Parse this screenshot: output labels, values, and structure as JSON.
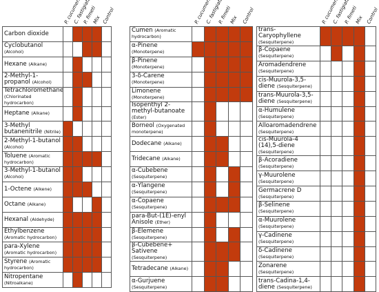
{
  "columns": [
    "P. cucumerina",
    "C. fastigiata",
    "P. fimeti",
    "Mix",
    "Control"
  ],
  "fill_color": "#c23b0d",
  "panels": [
    {
      "rows": [
        {
          "name": "Carbon dioxide",
          "cells": [
            0,
            1,
            1,
            1,
            0
          ]
        },
        {
          "name": "Cyclobutanol",
          "class": "(Alcohol)",
          "cells": [
            0,
            0,
            1,
            1,
            0
          ]
        },
        {
          "name": "Hexane",
          "class": "(Alkane)",
          "cells": [
            0,
            1,
            0,
            0,
            0
          ]
        },
        {
          "name": "2-Methyl-1-propanol",
          "class": "(Alcohol)",
          "cells": [
            0,
            1,
            1,
            0,
            0
          ]
        },
        {
          "name": "Tetrachloromethane",
          "class": "(Chlorinated hydrocarbon)",
          "cells": [
            0,
            1,
            0,
            0,
            0
          ]
        },
        {
          "name": "Heptane",
          "class": "(Alkane)",
          "cells": [
            0,
            1,
            0,
            0,
            0
          ]
        },
        {
          "name": "3-Methyl butanenitrile",
          "class": "(Nitrile)",
          "cells": [
            1,
            0,
            0,
            0,
            0
          ]
        },
        {
          "name": "2-Methyl-1-butanol",
          "class": "(Alcohol)",
          "cells": [
            1,
            1,
            0,
            0,
            0
          ]
        },
        {
          "name": "Toluene",
          "class": "(Aromatic hydrocarbon)",
          "cells": [
            1,
            1,
            1,
            1,
            0
          ]
        },
        {
          "name": "3-Methyl-1-butanol",
          "class": "(Alcohol)",
          "cells": [
            1,
            1,
            0,
            0,
            0
          ]
        },
        {
          "name": "1-Octene",
          "class": "(Alkene)",
          "cells": [
            1,
            1,
            1,
            0,
            0
          ]
        },
        {
          "name": "Octane",
          "class": "(Alkane)",
          "cells": [
            1,
            0,
            0,
            1,
            0
          ]
        },
        {
          "name": "Hexanal",
          "class": "(Aldehyde)",
          "cells": [
            1,
            1,
            1,
            1,
            0
          ]
        },
        {
          "name": "Ethylbenzene",
          "class": "(Aromatic hydrocarbon)",
          "cells": [
            1,
            1,
            1,
            1,
            0
          ]
        },
        {
          "name": "para-Xylene",
          "class": "(Aromatic hydrocarbon)",
          "cells": [
            1,
            1,
            1,
            1,
            0
          ]
        },
        {
          "name": "Styrene",
          "class": "(Aromatic hydrocarbon)",
          "cells": [
            1,
            1,
            1,
            1,
            0
          ]
        },
        {
          "name": "Nitropentane",
          "class": "(Nitroalkane)",
          "cells": [
            0,
            1,
            0,
            0,
            0
          ]
        }
      ]
    },
    {
      "rows": [
        {
          "name": "Cumen",
          "class": "(Aromatic hydrocarbon)",
          "cells": [
            0,
            1,
            1,
            1,
            1
          ]
        },
        {
          "name": "α-Pinene",
          "class": "(Monoterpene)",
          "cells": [
            1,
            1,
            1,
            1,
            1
          ]
        },
        {
          "name": "β-Pinene",
          "class": "(Monoterpene)",
          "cells": [
            0,
            1,
            1,
            1,
            1
          ]
        },
        {
          "name": "3-δ-Carene",
          "class": "(Monoterpene)",
          "cells": [
            0,
            1,
            1,
            1,
            1
          ]
        },
        {
          "name": "Limonene",
          "class": "(Monoterpene)",
          "cells": [
            0,
            1,
            1,
            1,
            1
          ]
        },
        {
          "name": "Isopenthyl 2-methyl-butanoate",
          "class": "(Ester)",
          "cells": [
            0,
            1,
            0,
            0,
            0
          ]
        },
        {
          "name": "Borneol",
          "class": "(Oxygenated monoterpene)",
          "cells": [
            0,
            1,
            0,
            0,
            0
          ]
        },
        {
          "name": "Dodecane",
          "class": "(Alkane)",
          "cells": [
            0,
            1,
            1,
            0,
            0
          ]
        },
        {
          "name": "Tridecane",
          "class": "(Alkane)",
          "cells": [
            0,
            1,
            1,
            0,
            0
          ]
        },
        {
          "name": "α-Cubebene",
          "class": "(Sesquiterpene)",
          "cells": [
            0,
            1,
            0,
            1,
            0
          ]
        },
        {
          "name": "α-Ylangene",
          "class": "(Sesquiterpene)",
          "cells": [
            0,
            1,
            0,
            1,
            0
          ]
        },
        {
          "name": "α-Copaene",
          "class": "(Sesquiterpene)",
          "cells": [
            0,
            1,
            1,
            1,
            0
          ]
        },
        {
          "name": "para-But-(1E)-enyl Anisole",
          "class": "(Ether)",
          "cells": [
            0,
            1,
            0,
            0,
            0
          ]
        },
        {
          "name": "β-Elemene",
          "class": "(Sesquiterpene)",
          "cells": [
            0,
            1,
            0,
            1,
            0
          ]
        },
        {
          "name": "β-Cubebene+ Sativene",
          "class": "(Sesquiterpene)",
          "cells": [
            0,
            1,
            1,
            1,
            0
          ]
        },
        {
          "name": "Tetradecane",
          "class": "(Alkane)",
          "cells": [
            0,
            1,
            1,
            0,
            0
          ]
        },
        {
          "name": "α-Gurjuene",
          "class": "(Sesquiterpene)",
          "cells": [
            0,
            1,
            1,
            0,
            0
          ]
        }
      ]
    },
    {
      "rows": [
        {
          "name": "trans-Caryophyllene",
          "class": "(Sesquiterpene)",
          "cells": [
            1,
            1,
            1,
            1,
            0
          ]
        },
        {
          "name": "β-Copaene",
          "class": "(Sesquiterpene)",
          "cells": [
            0,
            1,
            0,
            1,
            0
          ]
        },
        {
          "name": "Aromadendrene",
          "class": "(Sesquiterpene)",
          "cells": [
            0,
            0,
            0,
            1,
            0
          ]
        },
        {
          "name": "cis-Muurola-3,5-diene",
          "class": "(Sesquiterpene)",
          "cells": [
            0,
            0,
            0,
            1,
            0
          ]
        },
        {
          "name": "trans-Muurola-3,5-diene",
          "class": "(Sesquiterpene)",
          "cells": [
            0,
            0,
            0,
            1,
            0
          ]
        },
        {
          "name": "α-Humulene",
          "class": "(Sesquiterpene)",
          "cells": [
            0,
            0,
            0,
            1,
            0
          ]
        },
        {
          "name": "Alloaromadendrene",
          "class": "(Sesquiterpene)",
          "cells": [
            0,
            0,
            0,
            1,
            0
          ]
        },
        {
          "name": "cis-Muurola-4 (14),5-diene",
          "class": "(Sesquiterpene)",
          "cells": [
            0,
            0,
            0,
            1,
            0
          ]
        },
        {
          "name": "β-Acoradiene",
          "class": "(Sesquiterpene)",
          "cells": [
            0,
            0,
            0,
            1,
            0
          ]
        },
        {
          "name": "γ-Muurolene",
          "class": "(Sesquiterpene)",
          "cells": [
            0,
            0,
            0,
            1,
            0
          ]
        },
        {
          "name": "Germacrene D",
          "class": "(Sesquiterpene)",
          "cells": [
            0,
            0,
            0,
            1,
            0
          ]
        },
        {
          "name": "β-Selinene",
          "class": "(Sesquiterpene)",
          "cells": [
            0,
            0,
            0,
            1,
            0
          ]
        },
        {
          "name": "α-Muurolene",
          "class": "(Sesquiterpene)",
          "cells": [
            0,
            0,
            0,
            1,
            0
          ]
        },
        {
          "name": "γ-Cadinene",
          "class": "(Sesquiterpene)",
          "cells": [
            0,
            0,
            0,
            1,
            0
          ]
        },
        {
          "name": "δ-Cadinene",
          "class": "(Sesquiterpene)",
          "cells": [
            0,
            0,
            0,
            1,
            0
          ]
        },
        {
          "name": "Zonarene",
          "class": "(Sesquiterpene)",
          "cells": [
            0,
            0,
            0,
            1,
            0
          ]
        },
        {
          "name": "trans-Cadina-1,4-diene",
          "class": "(Sesquiterpene)",
          "cells": [
            0,
            0,
            0,
            1,
            0
          ]
        }
      ]
    }
  ]
}
